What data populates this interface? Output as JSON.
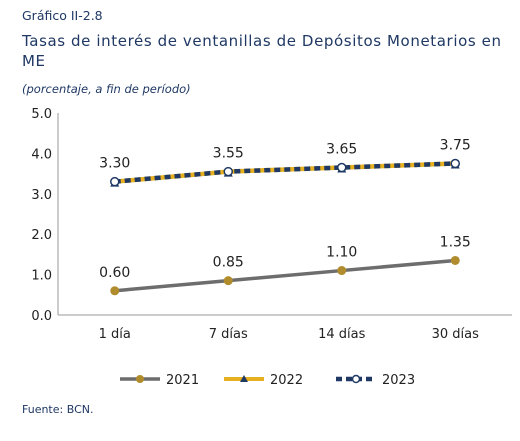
{
  "header": {
    "kicker": "Gráfico II-2.8",
    "title": "Tasas de interés de ventanillas de Depósitos Monetarios en ME",
    "subtitle": "(porcentaje, a fin de período)"
  },
  "footer": {
    "source": "Fuente: BCN."
  },
  "chart_data": {
    "type": "line",
    "title": "Tasas de interés de ventanillas de Depósitos Monetarios en ME",
    "categories": [
      "1 día",
      "7 días",
      "14 días",
      "30 días"
    ],
    "ylim": [
      0,
      5
    ],
    "yticks": [
      "0.0",
      "1.0",
      "2.0",
      "3.0",
      "4.0",
      "5.0"
    ],
    "grid": false,
    "legend": "bottom",
    "series": [
      {
        "name": "2021",
        "values": [
          0.6,
          0.85,
          1.1,
          1.35
        ],
        "labels": [
          "0.60",
          "0.85",
          "1.10",
          "1.35"
        ],
        "color": "#6d6d6d",
        "marker_color": "#b08c2c"
      },
      {
        "name": "2022",
        "values": [
          3.3,
          3.55,
          3.65,
          3.75
        ],
        "labels": [
          "3.30",
          "3.55",
          "3.65",
          "3.75"
        ],
        "color": "#e6b020",
        "marker_color": "#1f3864"
      },
      {
        "name": "2023",
        "values": [
          3.3,
          3.55,
          3.65,
          3.75
        ],
        "color": "#1f3864",
        "marker_color": "#ffffff"
      }
    ]
  }
}
